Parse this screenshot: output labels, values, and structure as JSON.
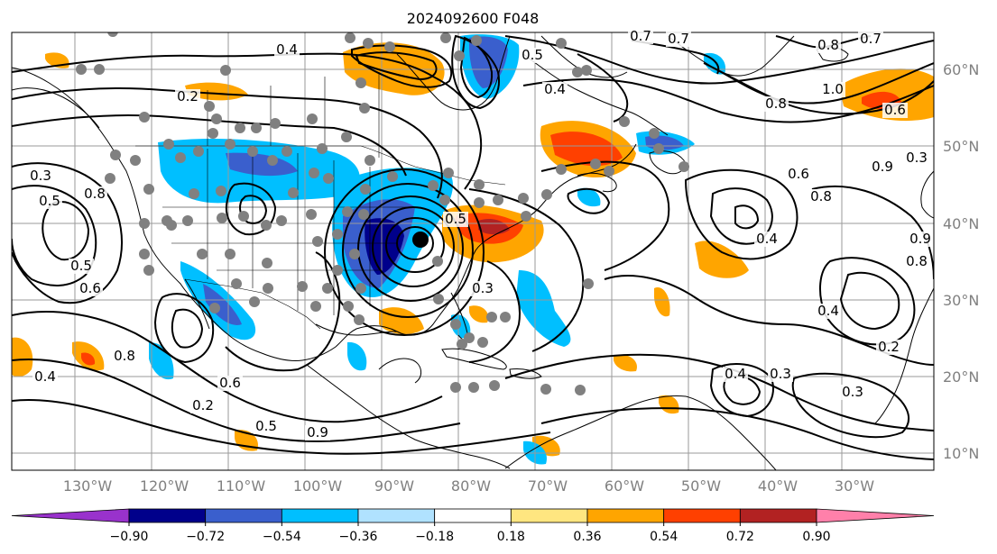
{
  "title": "2024092600 F048",
  "lon_labels": [
    "130°W",
    "120°W",
    "110°W",
    "100°W",
    "90°W",
    "80°W",
    "70°W",
    "60°W",
    "50°W",
    "40°W",
    "30°W"
  ],
  "lat_labels": [
    "60°N",
    "50°N",
    "40°N",
    "30°N",
    "20°N",
    "10°N"
  ],
  "colorbar": {
    "tick_labels": [
      "−0.90",
      "−0.72",
      "−0.54",
      "−0.36",
      "−0.18",
      "0.18",
      "0.36",
      "0.54",
      "0.72",
      "0.90"
    ],
    "colors": [
      "#9932cc",
      "#00008b",
      "#3a5fcd",
      "#00bfff",
      "#b0e2ff",
      "#ffffff",
      "#ffe680",
      "#ffa500",
      "#ff4000",
      "#b22222",
      "#ff80aa"
    ]
  },
  "contour_labels": [
    "0.4",
    "0.2",
    "0.7",
    "0.5",
    "0.7",
    "0.4",
    "0.8",
    "0.7",
    "0.3",
    "0.5",
    "0.8",
    "0.6",
    "1.0",
    "0.8",
    "0.9",
    "0.6",
    "0.8",
    "0.5",
    "0.4",
    "0.3",
    "0.8",
    "0.9",
    "0.3",
    "0.5",
    "0.6",
    "0.4",
    "0.2",
    "0.4",
    "0.3",
    "0.4",
    "0.3",
    "0.2",
    "0.6",
    "0.5",
    "0.9",
    "0.8"
  ],
  "fill_colors": {
    "pos_light": "#ffa500",
    "pos_strong": "#ff4000",
    "neg_light": "#00bfff",
    "neg_strong": "#3a5fcd",
    "neg_very": "#00008b",
    "pos_max": "#b22222"
  },
  "markers": {
    "station_color": "#808080",
    "center_color": "#000000"
  }
}
